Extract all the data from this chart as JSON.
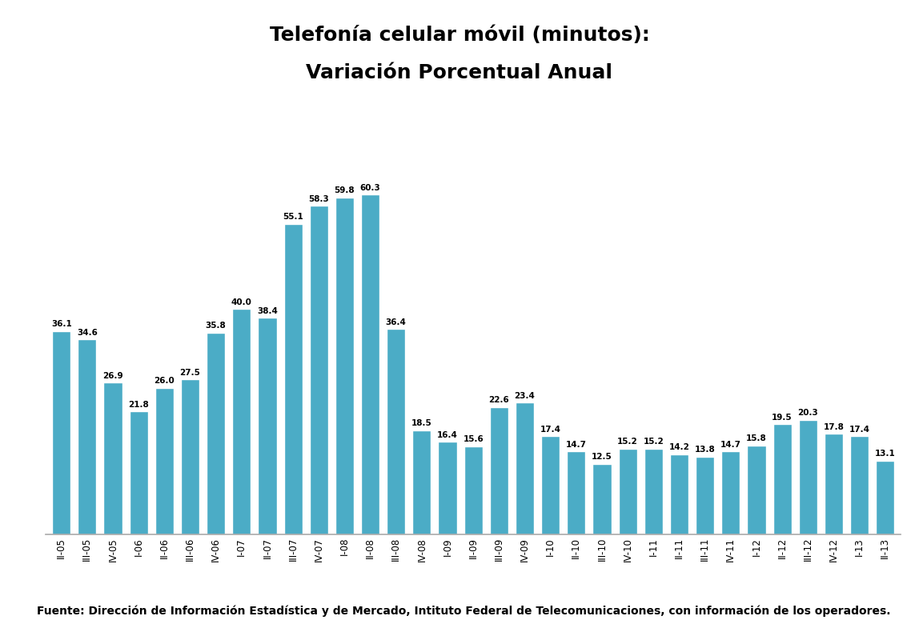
{
  "title_line1": "Telefonía celular móvil (minutos):",
  "title_line2": "Variación Porcentual Anual",
  "categories": [
    "II-05",
    "III-05",
    "IV-05",
    "I-06",
    "II-06",
    "III-06",
    "IV-06",
    "I-07",
    "II-07",
    "III-07",
    "IV-07",
    "I-08",
    "II-08",
    "III-08",
    "IV-08",
    "I-09",
    "II-09",
    "III-09",
    "IV-09",
    "I-10",
    "II-10",
    "III-10",
    "IV-10",
    "I-11",
    "II-11",
    "III-11",
    "IV-11",
    "I-12",
    "II-12",
    "III-12",
    "IV-12",
    "I-13",
    "II-13"
  ],
  "values": [
    36.1,
    34.6,
    26.9,
    21.8,
    26.0,
    27.5,
    35.8,
    40.0,
    38.4,
    55.1,
    58.3,
    59.8,
    60.3,
    36.4,
    18.5,
    16.4,
    15.6,
    22.6,
    23.4,
    17.4,
    14.7,
    12.5,
    15.2,
    15.2,
    14.2,
    13.8,
    14.7,
    15.8,
    19.5,
    20.3,
    17.8,
    17.4,
    13.1
  ],
  "bar_color": "#4BACC6",
  "bar_edge_color": "#FFFFFF",
  "background_color": "#FFFFFF",
  "title_fontsize": 18,
  "tick_fontsize": 8.5,
  "value_fontsize": 7.5,
  "footer_text": "Fuente: Dirección de Información Estadística y de Mercado, Intituto Federal de Telecomunicaciones, con información de los operadores.",
  "footer_fontsize": 10,
  "ylim": [
    0,
    70
  ]
}
